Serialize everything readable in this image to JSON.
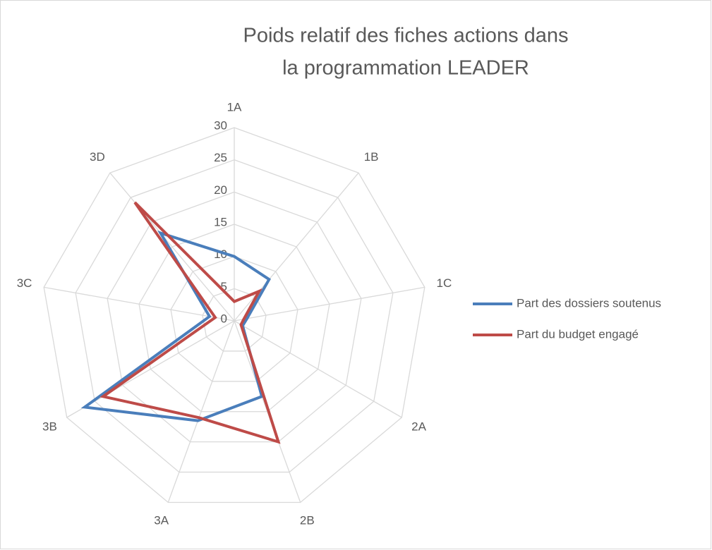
{
  "chart_data": {
    "type": "radar",
    "title": "Poids relatif des fiches actions dans la programmation LEADER",
    "categories": [
      "1A",
      "1B",
      "1C",
      "2A",
      "2B",
      "3A",
      "3B",
      "3C",
      "3D"
    ],
    "series": [
      {
        "name": "Part des dossiers soutenus",
        "color": "#4a7ebb",
        "values": [
          10,
          8.4,
          2,
          1.5,
          12.5,
          16.5,
          26.8,
          3.9,
          17.8
        ]
      },
      {
        "name": "Part du budget engagé",
        "color": "#be4b48",
        "values": [
          3,
          6,
          1.5,
          1.2,
          20,
          16,
          23.5,
          3,
          24
        ]
      }
    ],
    "ylim": [
      0,
      30
    ],
    "yticks": [
      0,
      5,
      10,
      15,
      20,
      25,
      30
    ],
    "grid": true,
    "legend": "right"
  }
}
